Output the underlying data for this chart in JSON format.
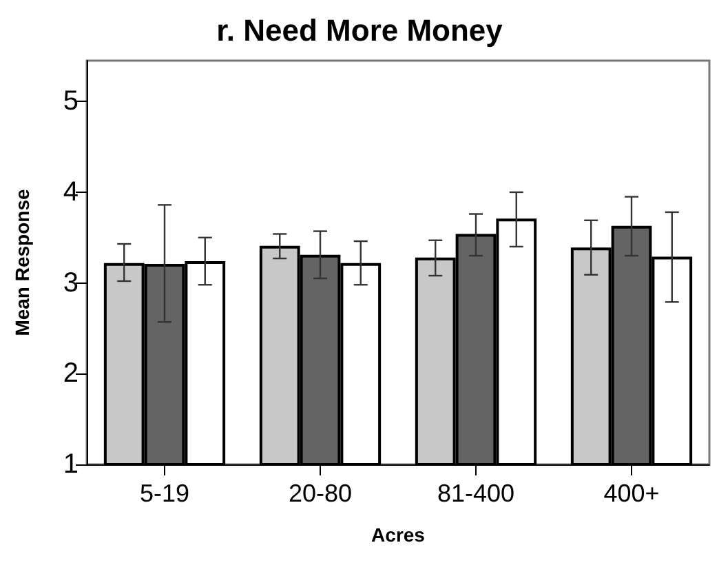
{
  "chart_data": {
    "type": "bar",
    "title": "r. Need More Money",
    "xlabel": "Acres",
    "ylabel": "Mean Response",
    "categories": [
      "5-19",
      "20-80",
      "81-400",
      "400+"
    ],
    "series": [
      {
        "color": "#c8c8c8",
        "values": [
          3.22,
          3.41,
          3.28,
          3.39
        ],
        "errors": [
          [
            3.02,
            3.43
          ],
          [
            3.27,
            3.54
          ],
          [
            3.08,
            3.47
          ],
          [
            3.09,
            3.69
          ]
        ]
      },
      {
        "color": "#646464",
        "values": [
          3.21,
          3.31,
          3.54,
          3.63
        ],
        "errors": [
          [
            2.57,
            3.86
          ],
          [
            3.05,
            3.57
          ],
          [
            3.3,
            3.76
          ],
          [
            3.3,
            3.95
          ]
        ]
      },
      {
        "color": "#ffffff",
        "values": [
          3.24,
          3.22,
          3.71,
          3.29
        ],
        "errors": [
          [
            2.98,
            3.5
          ],
          [
            2.98,
            3.46
          ],
          [
            3.4,
            4.0
          ],
          [
            2.79,
            3.78
          ]
        ]
      }
    ],
    "ylim": [
      1,
      5.45
    ],
    "yticks": [
      1,
      2,
      3,
      4,
      5
    ]
  }
}
